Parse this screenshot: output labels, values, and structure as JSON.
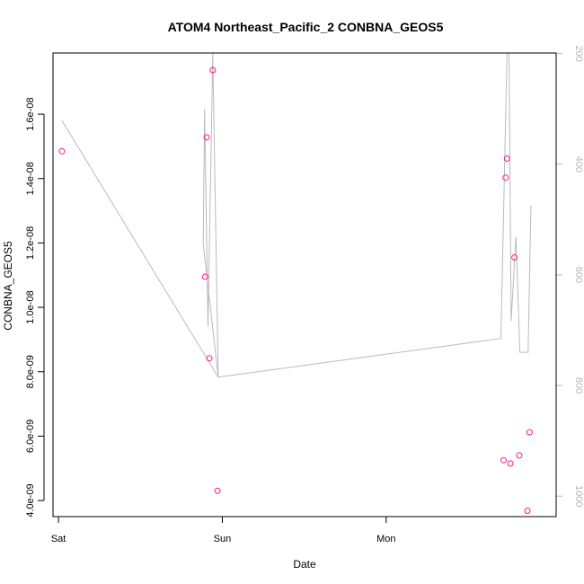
{
  "chart_data": {
    "type": "scatter",
    "title": "ATOM4 Northeast_Pacific_2 CONBNA_GEOS5",
    "xlabel": "Date",
    "ylabel": "CONBNA_GEOS5",
    "x_tick_labels": [
      "Sat",
      "Sun",
      "Mon"
    ],
    "x_tick_values": [
      0,
      24,
      48
    ],
    "xlim": [
      -0.8,
      72.9
    ],
    "ylim": [
      3.5e-09,
      1.79e-08
    ],
    "y_ticks": [
      {
        "value": 4e-09,
        "label": "4.0e-09"
      },
      {
        "value": 6e-09,
        "label": "6.0e-09"
      },
      {
        "value": 8e-09,
        "label": "8.0e-09"
      },
      {
        "value": 1e-08,
        "label": "1.0e-08"
      },
      {
        "value": 1.2e-08,
        "label": "1.2e-08"
      },
      {
        "value": 1.4e-08,
        "label": "1.4e-08"
      },
      {
        "value": 1.6e-08,
        "label": "1.6e-08"
      }
    ],
    "right_axis": {
      "lim": [
        1037,
        199
      ],
      "inverted": true,
      "ticks": [
        {
          "value": 200,
          "label": "200"
        },
        {
          "value": 400,
          "label": "400"
        },
        {
          "value": 600,
          "label": "600"
        },
        {
          "value": 800,
          "label": "800"
        },
        {
          "value": 1000,
          "label": "1000"
        }
      ]
    },
    "points_color": "#ff1493",
    "line_color": "#bbbbbb",
    "series": [
      {
        "values": [
          {
            "x": 0.5,
            "y": 1.485e-08
          },
          {
            "x": 21.5,
            "y": 1.095e-08
          },
          {
            "x": 21.7,
            "y": 1.528e-08
          },
          {
            "x": 22.1,
            "y": 8.42e-09
          },
          {
            "x": 22.6,
            "y": 1.737e-08
          },
          {
            "x": 23.3,
            "y": 4.3e-09
          },
          {
            "x": 65.2,
            "y": 5.25e-09
          },
          {
            "x": 65.5,
            "y": 1.403e-08
          },
          {
            "x": 65.7,
            "y": 1.462e-08
          },
          {
            "x": 66.2,
            "y": 5.15e-09
          },
          {
            "x": 66.8,
            "y": 1.155e-08
          },
          {
            "x": 67.5,
            "y": 5.4e-09
          },
          {
            "x": 68.7,
            "y": 3.68e-09
          },
          {
            "x": 69.0,
            "y": 6.12e-09
          }
        ]
      },
      {
        "axis": "right",
        "values": [
          {
            "x": 0.5,
            "y": 321
          },
          {
            "x": 23.4,
            "y": 785
          },
          {
            "x": 21.2,
            "y": 544
          },
          {
            "x": 21.4,
            "y": 300
          },
          {
            "x": 21.9,
            "y": 693
          },
          {
            "x": 22.6,
            "y": 199
          },
          {
            "x": 23.0,
            "y": 199
          },
          {
            "x": 22.0,
            "y": 199
          },
          {
            "x": 21.7,
            "y": 199
          },
          {
            "x": 22.6,
            "y": 199
          },
          {
            "x": 23.4,
            "y": 785
          },
          {
            "x": 64.8,
            "y": 715
          },
          {
            "x": 65.7,
            "y": 199
          },
          {
            "x": 66.0,
            "y": 199
          },
          {
            "x": 66.3,
            "y": 684
          },
          {
            "x": 67.0,
            "y": 531
          },
          {
            "x": 67.6,
            "y": 740
          },
          {
            "x": 68.8,
            "y": 740
          },
          {
            "x": 69.2,
            "y": 475
          }
        ]
      }
    ]
  }
}
